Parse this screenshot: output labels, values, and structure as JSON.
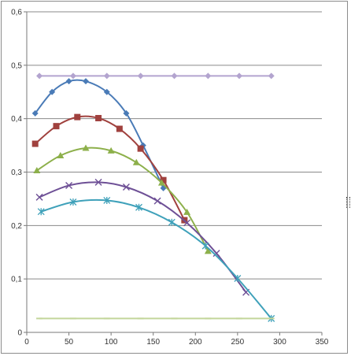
{
  "chart_data": {
    "type": "line",
    "title": "",
    "xlabel": "",
    "ylabel": "",
    "xlim": [
      0,
      350
    ],
    "ylim": [
      0,
      0.6
    ],
    "x_ticks": [
      0,
      50,
      100,
      150,
      200,
      250,
      300,
      350
    ],
    "y_ticks": [
      0,
      0.1,
      0.2,
      0.3,
      0.4,
      0.5,
      0.6
    ],
    "x_tick_labels": [
      "0",
      "50",
      "100",
      "150",
      "200",
      "250",
      "300",
      "350"
    ],
    "y_tick_labels": [
      "0",
      "0,1",
      "0,2",
      "0,3",
      "0,4",
      "0,5",
      "0,6"
    ],
    "grid": {
      "horizontal": true,
      "vertical": false
    },
    "legend": "none",
    "series": [
      {
        "color": "#4a7bb7",
        "marker": "diamond",
        "x": [
          10,
          30,
          50,
          70,
          95,
          118,
          138,
          162
        ],
        "y": [
          0.41,
          0.45,
          0.47,
          0.47,
          0.45,
          0.41,
          0.35,
          0.27
        ]
      },
      {
        "color": "#a0413e",
        "marker": "square",
        "x": [
          10,
          35,
          60,
          85,
          110,
          135,
          162,
          187
        ],
        "y": [
          0.353,
          0.386,
          0.403,
          0.401,
          0.381,
          0.344,
          0.285,
          0.21
        ]
      },
      {
        "color": "#8db04b",
        "marker": "triangle",
        "x": [
          12,
          40,
          70,
          100,
          130,
          160,
          190,
          215
        ],
        "y": [
          0.303,
          0.331,
          0.345,
          0.34,
          0.318,
          0.28,
          0.225,
          0.152
        ]
      },
      {
        "color": "#6e5096",
        "marker": "x",
        "x": [
          15,
          50,
          85,
          118,
          155,
          190,
          225,
          260
        ],
        "y": [
          0.253,
          0.275,
          0.281,
          0.272,
          0.246,
          0.205,
          0.148,
          0.075
        ]
      },
      {
        "color": "#3fa1ba",
        "marker": "asterisk",
        "x": [
          17,
          55,
          95,
          133,
          172,
          212,
          250,
          290
        ],
        "y": [
          0.226,
          0.244,
          0.247,
          0.234,
          0.206,
          0.162,
          0.101,
          0.026
        ]
      },
      {
        "color": "#b3a4cf",
        "marker": "diamond",
        "x": [
          15,
          55,
          95,
          135,
          175,
          215,
          252,
          290
        ],
        "y": [
          0.48,
          0.48,
          0.48,
          0.48,
          0.48,
          0.48,
          0.48,
          0.48
        ]
      },
      {
        "color": "#c3d69b",
        "marker": "dash",
        "x": [
          15,
          55,
          95,
          135,
          175,
          215,
          252,
          290
        ],
        "y": [
          0.026,
          0.026,
          0.026,
          0.026,
          0.026,
          0.026,
          0.026,
          0.026
        ]
      }
    ]
  }
}
